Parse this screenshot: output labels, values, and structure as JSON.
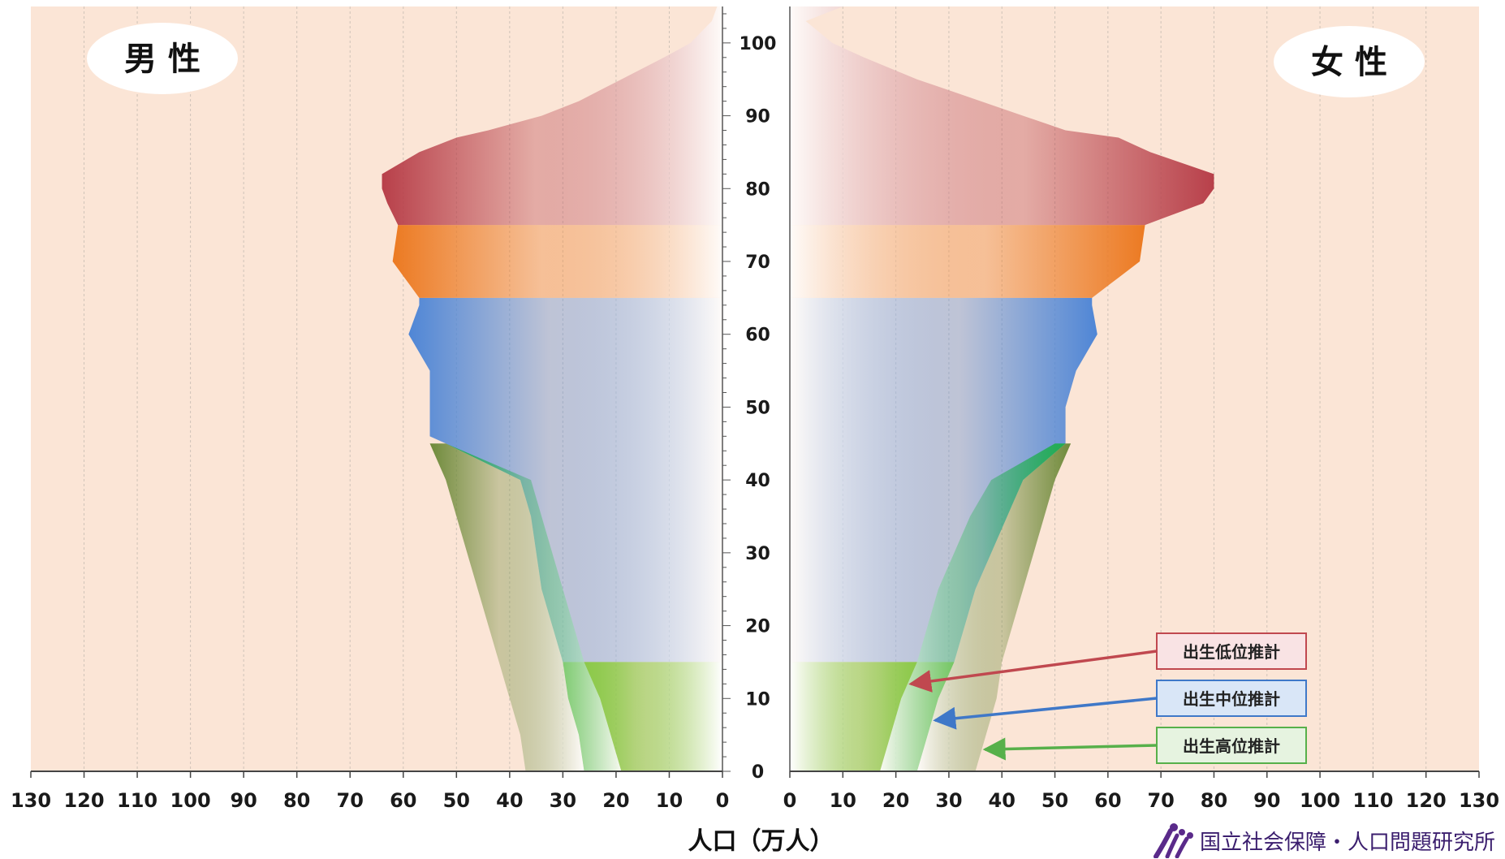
{
  "chart_data": {
    "type": "population-pyramid",
    "male_label": "男 性",
    "female_label": "女 性",
    "xlabel": "人口（万人）",
    "x_ticks_male": [
      "130",
      "120",
      "110",
      "100",
      "90",
      "80",
      "70",
      "60",
      "50",
      "40",
      "30",
      "20",
      "10",
      "0"
    ],
    "x_ticks_female": [
      "0",
      "10",
      "20",
      "30",
      "40",
      "50",
      "60",
      "70",
      "80",
      "90",
      "100",
      "110",
      "120",
      "130"
    ],
    "y_ticks": [
      "0",
      "10",
      "20",
      "30",
      "40",
      "50",
      "60",
      "70",
      "80",
      "90",
      "100"
    ],
    "xlim": [
      0,
      130
    ],
    "ylim": [
      0,
      105
    ],
    "age_bands": [
      {
        "name": "0-14",
        "from": 0,
        "to": 15,
        "color": "#8cc94a"
      },
      {
        "name": "15-64",
        "from": 15,
        "to": 65,
        "color": "#4f86d6"
      },
      {
        "name": "65-74",
        "from": 65,
        "to": 75,
        "color": "#ec7a22"
      },
      {
        "name": "75+",
        "from": 75,
        "to": 105,
        "color": "#b8404a"
      }
    ],
    "male_medium": [
      [
        0,
        26
      ],
      [
        5,
        27
      ],
      [
        10,
        29
      ],
      [
        15,
        30
      ],
      [
        20,
        32
      ],
      [
        25,
        34
      ],
      [
        30,
        35
      ],
      [
        35,
        36
      ],
      [
        40,
        38
      ],
      [
        45,
        52
      ],
      [
        46,
        55
      ],
      [
        50,
        55
      ],
      [
        55,
        55
      ],
      [
        60,
        59
      ],
      [
        64,
        57
      ],
      [
        65,
        57
      ],
      [
        70,
        62
      ],
      [
        75,
        61
      ],
      [
        78,
        63
      ],
      [
        80,
        64
      ],
      [
        82,
        64
      ],
      [
        85,
        57
      ],
      [
        87,
        50
      ],
      [
        88,
        44
      ],
      [
        90,
        34
      ],
      [
        92,
        27
      ],
      [
        95,
        19
      ],
      [
        98,
        11
      ],
      [
        100,
        6
      ],
      [
        103,
        2
      ],
      [
        105,
        1
      ]
    ],
    "male_low": [
      [
        0,
        19
      ],
      [
        5,
        21
      ],
      [
        10,
        23
      ],
      [
        15,
        26
      ],
      [
        20,
        28
      ],
      [
        25,
        30
      ],
      [
        30,
        32
      ],
      [
        35,
        34
      ],
      [
        40,
        36
      ],
      [
        45,
        52
      ]
    ],
    "male_high": [
      [
        0,
        37
      ],
      [
        5,
        38
      ],
      [
        10,
        40
      ],
      [
        15,
        42
      ],
      [
        20,
        44
      ],
      [
        25,
        46
      ],
      [
        30,
        48
      ],
      [
        35,
        50
      ],
      [
        40,
        52
      ],
      [
        45,
        55
      ]
    ],
    "female_medium": [
      [
        0,
        24
      ],
      [
        5,
        26
      ],
      [
        10,
        28
      ],
      [
        15,
        31
      ],
      [
        20,
        33
      ],
      [
        25,
        35
      ],
      [
        30,
        38
      ],
      [
        35,
        41
      ],
      [
        40,
        44
      ],
      [
        45,
        52
      ],
      [
        46,
        52
      ],
      [
        50,
        52
      ],
      [
        55,
        54
      ],
      [
        60,
        58
      ],
      [
        64,
        57
      ],
      [
        65,
        57
      ],
      [
        70,
        66
      ],
      [
        75,
        67
      ],
      [
        78,
        78
      ],
      [
        80,
        80
      ],
      [
        82,
        80
      ],
      [
        85,
        68
      ],
      [
        87,
        62
      ],
      [
        88,
        52
      ],
      [
        90,
        44
      ],
      [
        92,
        36
      ],
      [
        95,
        24
      ],
      [
        98,
        14
      ],
      [
        100,
        8
      ],
      [
        103,
        3
      ],
      [
        105,
        10
      ]
    ],
    "female_low": [
      [
        0,
        17
      ],
      [
        5,
        19
      ],
      [
        10,
        21
      ],
      [
        15,
        24
      ],
      [
        20,
        26
      ],
      [
        25,
        28
      ],
      [
        30,
        31
      ],
      [
        35,
        34
      ],
      [
        40,
        38
      ],
      [
        45,
        50
      ]
    ],
    "female_high": [
      [
        0,
        35
      ],
      [
        5,
        37
      ],
      [
        10,
        39
      ],
      [
        15,
        40
      ],
      [
        20,
        42
      ],
      [
        25,
        44
      ],
      [
        30,
        46
      ],
      [
        35,
        48
      ],
      [
        40,
        50
      ],
      [
        45,
        53
      ]
    ],
    "legend": [
      {
        "label": "出生低位推計",
        "color": "#c0484f",
        "bg": "#f9e3e4"
      },
      {
        "label": "出生中位推計",
        "color": "#3f78c8",
        "bg": "#d9e6f7"
      },
      {
        "label": "出生高位推計",
        "color": "#57b04a",
        "bg": "#e6f3e0"
      }
    ]
  },
  "brand": {
    "text": "国立社会保障・人口問題研究所"
  }
}
